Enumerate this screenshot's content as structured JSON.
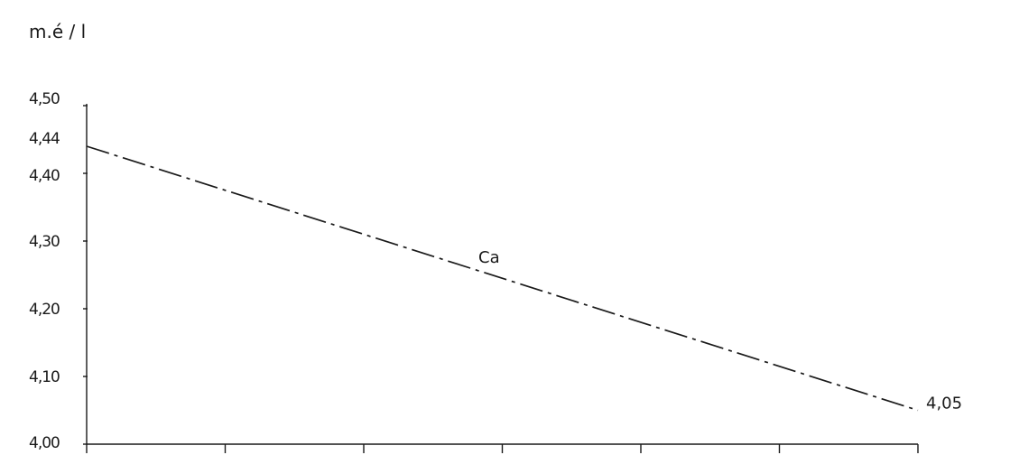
{
  "chart_data": {
    "type": "line",
    "title": "",
    "xlabel": "",
    "ylabel": "m.é / l",
    "ylim": [
      4.0,
      4.5
    ],
    "xlim": [
      0,
      6
    ],
    "y_tick_labels": [
      "4,00",
      "4,10",
      "4,20",
      "4,30",
      "4,40",
      "4,44",
      "4,50"
    ],
    "y_tick_values": [
      4.0,
      4.1,
      4.2,
      4.3,
      4.4,
      4.44,
      4.5
    ],
    "x_tick_values": [
      0,
      1,
      2,
      3,
      4,
      5,
      6
    ],
    "series": [
      {
        "name": "Ca",
        "line_style": "dash-dot",
        "x": [
          0,
          6
        ],
        "y": [
          4.44,
          4.05
        ]
      }
    ],
    "annotations": [
      {
        "text": "4,05",
        "x": 6,
        "y": 4.05
      }
    ],
    "grid": false,
    "colors": {
      "ink": "#1a1a1a",
      "background": "#ffffff"
    }
  }
}
